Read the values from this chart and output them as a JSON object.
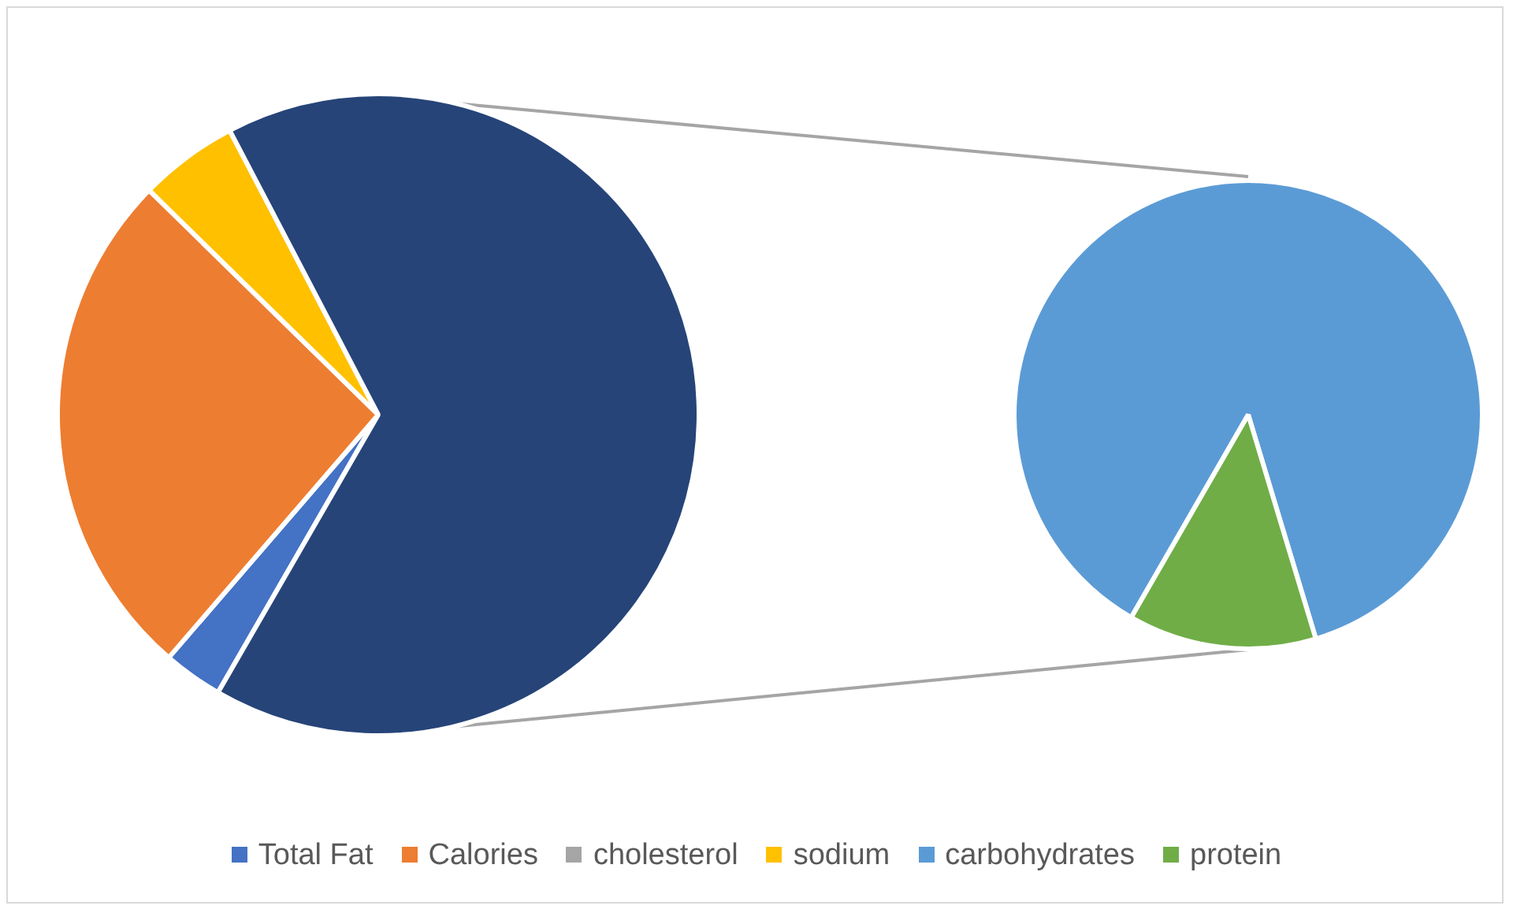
{
  "chart_data": [
    {
      "type": "pie",
      "categories": [
        "Total Fat",
        "Calories",
        "cholesterol",
        "sodium",
        null
      ],
      "values": [
        3,
        26,
        0,
        5,
        66
      ],
      "colors": [
        "#4472c4",
        "#ed7d31",
        "#a5a5a5",
        "#ffc000",
        "#264478"
      ],
      "legend": "bottom"
    },
    {
      "type": "pie",
      "categories": [
        "carbohydrates",
        "protein"
      ],
      "values": [
        87,
        13
      ],
      "colors": [
        "#5b9bd5",
        "#70ad47"
      ],
      "legend": "bottom"
    }
  ]
}
